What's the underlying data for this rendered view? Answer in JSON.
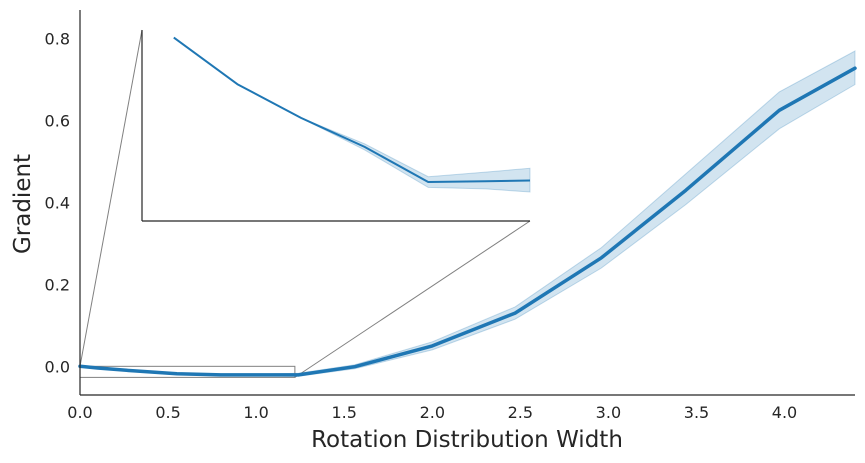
{
  "chart_data": {
    "type": "line",
    "title": "",
    "xlabel": "Rotation Distribution Width",
    "ylabel": "Gradient",
    "xlim": [
      0.0,
      4.4
    ],
    "ylim": [
      -0.07,
      0.87
    ],
    "xticks": [
      0.0,
      0.5,
      1.0,
      1.5,
      2.0,
      2.5,
      3.0,
      3.5,
      4.0
    ],
    "xtick_labels": [
      "0.0",
      "0.5",
      "1.0",
      "1.5",
      "2.0",
      "2.5",
      "3.0",
      "3.5",
      "4.0"
    ],
    "yticks": [
      0.0,
      0.2,
      0.4,
      0.6,
      0.8
    ],
    "ytick_labels": [
      "0.0",
      "0.2",
      "0.4",
      "0.6",
      "0.8"
    ],
    "grid": false,
    "colors": {
      "line": "#1f77b4",
      "band": "#1f77b4",
      "axis": "#262626",
      "zoom": "#808080"
    },
    "series": [
      {
        "name": "gradient",
        "x": [
          0.0,
          0.1,
          0.3,
          0.55,
          0.8,
          1.05,
          1.24,
          1.56,
          2.0,
          2.47,
          2.96,
          3.44,
          3.97,
          4.4
        ],
        "y": [
          0.0,
          -0.004,
          -0.011,
          -0.018,
          -0.021,
          -0.021,
          -0.021,
          -0.001,
          0.05,
          0.13,
          0.265,
          0.43,
          0.625,
          0.728
        ],
        "ci_low": [
          -0.002,
          -0.006,
          -0.013,
          -0.02,
          -0.023,
          -0.023,
          -0.024,
          -0.006,
          0.04,
          0.115,
          0.24,
          0.395,
          0.58,
          0.688
        ],
        "ci_high": [
          0.002,
          -0.002,
          -0.009,
          -0.016,
          -0.019,
          -0.019,
          -0.017,
          0.004,
          0.06,
          0.145,
          0.29,
          0.47,
          0.67,
          0.77
        ]
      }
    ],
    "inset": {
      "zoom_xlim": [
        0.0,
        1.22
      ],
      "zoom_ylim": [
        -0.027,
        0.0
      ],
      "x": [
        0.1,
        0.3,
        0.5,
        0.7,
        0.9,
        1.08,
        1.22
      ],
      "y": [
        -0.0025,
        -0.0086,
        -0.013,
        -0.0168,
        -0.0214,
        -0.0213,
        -0.0212
      ],
      "ci_low": [
        -0.0025,
        -0.0086,
        -0.013,
        -0.0172,
        -0.0221,
        -0.0223,
        -0.0227
      ],
      "ci_high": [
        -0.0025,
        -0.0086,
        -0.013,
        -0.0164,
        -0.0207,
        -0.0201,
        -0.0196
      ]
    }
  }
}
